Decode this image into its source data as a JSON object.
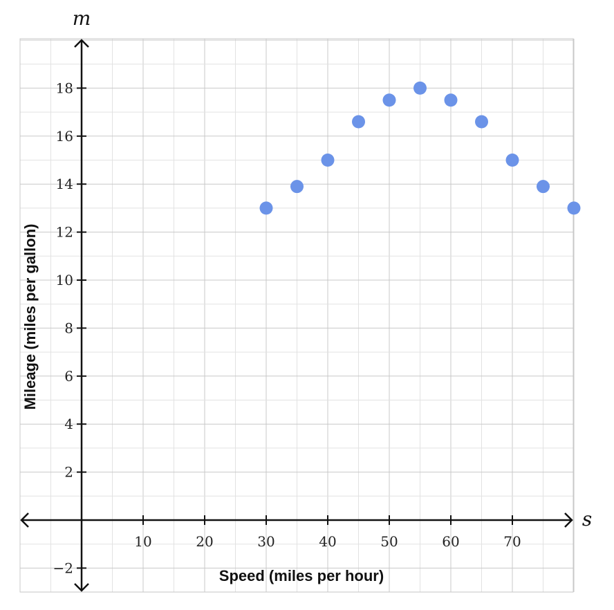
{
  "chart_data": {
    "type": "scatter",
    "title": "",
    "xlabel": "Speed (miles per hour)",
    "ylabel": "Mileage (miles per gallon)",
    "x_variable": "s",
    "y_variable": "m",
    "xlim": [
      -10,
      80
    ],
    "ylim": [
      -3,
      20
    ],
    "xticks": [
      "10",
      "20",
      "30",
      "40",
      "50",
      "60",
      "70"
    ],
    "yticks": [
      "−2",
      "2",
      "4",
      "6",
      "8",
      "10",
      "12",
      "14",
      "16",
      "18"
    ],
    "grid": true,
    "point_color": "#6b93e8",
    "series": [
      {
        "x": [
          30,
          35,
          40,
          45,
          50,
          55,
          60,
          65,
          70,
          75,
          80
        ],
        "y": [
          13,
          13.9,
          15,
          16.6,
          17.5,
          18,
          17.5,
          16.6,
          15,
          13.9,
          13
        ]
      }
    ]
  }
}
